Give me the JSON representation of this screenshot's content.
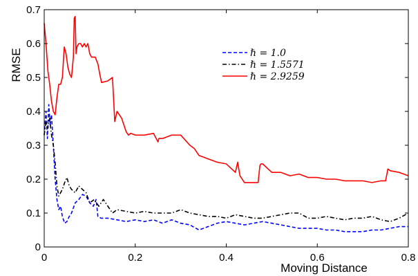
{
  "chart_data": {
    "type": "line",
    "title": "",
    "xlabel": "Moving Distance",
    "ylabel": "RMSE",
    "xlim": [
      0,
      0.8
    ],
    "ylim": [
      0,
      0.7
    ],
    "xticks": [
      "0",
      "0.2",
      "0.4",
      "0.6",
      "0.8"
    ],
    "yticks": [
      "0",
      "0.1",
      "0.2",
      "0.3",
      "0.4",
      "0.5",
      "0.6",
      "0.7"
    ],
    "grid": false,
    "legend_position": "top-right",
    "series": [
      {
        "name": "ℏ = 1.0",
        "color": "#0000ff",
        "style": "dashed",
        "x": [
          0,
          0.004,
          0.007,
          0.01,
          0.013,
          0.016,
          0.02,
          0.024,
          0.028,
          0.032,
          0.036,
          0.04,
          0.045,
          0.05,
          0.055,
          0.06,
          0.068,
          0.076,
          0.084,
          0.092,
          0.1,
          0.108,
          0.114,
          0.118,
          0.125,
          0.14,
          0.16,
          0.18,
          0.2,
          0.22,
          0.24,
          0.26,
          0.28,
          0.3,
          0.32,
          0.34,
          0.36,
          0.38,
          0.4,
          0.42,
          0.44,
          0.46,
          0.48,
          0.5,
          0.52,
          0.54,
          0.56,
          0.58,
          0.6,
          0.62,
          0.64,
          0.66,
          0.68,
          0.7,
          0.72,
          0.74,
          0.76,
          0.78,
          0.8
        ],
        "y": [
          0.33,
          0.4,
          0.32,
          0.42,
          0.36,
          0.39,
          0.3,
          0.2,
          0.14,
          0.11,
          0.12,
          0.09,
          0.07,
          0.075,
          0.09,
          0.1,
          0.13,
          0.14,
          0.155,
          0.15,
          0.13,
          0.12,
          0.14,
          0.09,
          0.085,
          0.085,
          0.08,
          0.075,
          0.08,
          0.075,
          0.08,
          0.07,
          0.08,
          0.07,
          0.065,
          0.05,
          0.06,
          0.07,
          0.075,
          0.07,
          0.065,
          0.07,
          0.075,
          0.07,
          0.065,
          0.06,
          0.055,
          0.055,
          0.055,
          0.05,
          0.05,
          0.045,
          0.045,
          0.045,
          0.05,
          0.05,
          0.055,
          0.06,
          0.06
        ]
      },
      {
        "name": "ℏ = 1.5571",
        "color": "#000000",
        "style": "dashdot",
        "x": [
          0,
          0.004,
          0.008,
          0.012,
          0.016,
          0.02,
          0.024,
          0.028,
          0.032,
          0.036,
          0.04,
          0.045,
          0.05,
          0.055,
          0.06,
          0.068,
          0.076,
          0.084,
          0.092,
          0.1,
          0.11,
          0.12,
          0.13,
          0.14,
          0.15,
          0.16,
          0.18,
          0.2,
          0.22,
          0.24,
          0.26,
          0.28,
          0.3,
          0.32,
          0.34,
          0.36,
          0.38,
          0.4,
          0.42,
          0.44,
          0.46,
          0.48,
          0.5,
          0.52,
          0.54,
          0.56,
          0.58,
          0.6,
          0.62,
          0.64,
          0.66,
          0.68,
          0.7,
          0.72,
          0.74,
          0.76,
          0.78,
          0.8
        ],
        "y": [
          0.33,
          0.37,
          0.35,
          0.38,
          0.33,
          0.3,
          0.25,
          0.18,
          0.15,
          0.16,
          0.17,
          0.19,
          0.205,
          0.18,
          0.17,
          0.16,
          0.18,
          0.17,
          0.16,
          0.13,
          0.14,
          0.12,
          0.14,
          0.12,
          0.1,
          0.11,
          0.105,
          0.1,
          0.105,
          0.1,
          0.1,
          0.1,
          0.11,
          0.1,
          0.095,
          0.09,
          0.09,
          0.085,
          0.095,
          0.09,
          0.085,
          0.085,
          0.09,
          0.095,
          0.1,
          0.1,
          0.085,
          0.085,
          0.09,
          0.085,
          0.08,
          0.085,
          0.085,
          0.09,
          0.08,
          0.075,
          0.085,
          0.1
        ]
      },
      {
        "name": "ℏ = 2.9259",
        "color": "#ff0000",
        "style": "solid",
        "x": [
          0,
          0.004,
          0.008,
          0.012,
          0.016,
          0.02,
          0.024,
          0.028,
          0.032,
          0.036,
          0.04,
          0.044,
          0.048,
          0.052,
          0.056,
          0.06,
          0.064,
          0.066,
          0.068,
          0.07,
          0.072,
          0.076,
          0.08,
          0.084,
          0.088,
          0.092,
          0.096,
          0.1,
          0.104,
          0.108,
          0.112,
          0.118,
          0.122,
          0.126,
          0.14,
          0.15,
          0.155,
          0.16,
          0.17,
          0.18,
          0.185,
          0.19,
          0.2,
          0.22,
          0.24,
          0.25,
          0.252,
          0.26,
          0.28,
          0.29,
          0.3,
          0.32,
          0.33,
          0.34,
          0.35,
          0.36,
          0.38,
          0.4,
          0.42,
          0.425,
          0.43,
          0.44,
          0.46,
          0.47,
          0.474,
          0.476,
          0.48,
          0.5,
          0.52,
          0.54,
          0.56,
          0.58,
          0.6,
          0.62,
          0.64,
          0.66,
          0.68,
          0.7,
          0.72,
          0.74,
          0.75,
          0.755,
          0.76,
          0.78,
          0.8
        ],
        "y": [
          0.66,
          0.6,
          0.52,
          0.48,
          0.43,
          0.4,
          0.39,
          0.44,
          0.48,
          0.48,
          0.5,
          0.59,
          0.57,
          0.53,
          0.51,
          0.5,
          0.56,
          0.675,
          0.68,
          0.57,
          0.59,
          0.6,
          0.6,
          0.59,
          0.6,
          0.59,
          0.6,
          0.57,
          0.56,
          0.56,
          0.56,
          0.54,
          0.51,
          0.485,
          0.49,
          0.5,
          0.37,
          0.4,
          0.38,
          0.34,
          0.33,
          0.335,
          0.33,
          0.33,
          0.335,
          0.31,
          0.32,
          0.32,
          0.33,
          0.33,
          0.33,
          0.3,
          0.29,
          0.27,
          0.265,
          0.26,
          0.25,
          0.245,
          0.22,
          0.25,
          0.21,
          0.19,
          0.19,
          0.19,
          0.24,
          0.245,
          0.245,
          0.22,
          0.22,
          0.21,
          0.215,
          0.205,
          0.205,
          0.2,
          0.2,
          0.195,
          0.195,
          0.195,
          0.19,
          0.195,
          0.195,
          0.23,
          0.225,
          0.22,
          0.21
        ]
      }
    ]
  }
}
